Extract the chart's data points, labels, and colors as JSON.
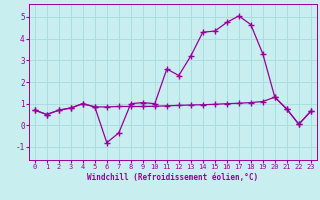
{
  "xlabel": "Windchill (Refroidissement éolien,°C)",
  "background_color": "#c8eef0",
  "grid_color": "#aadddd",
  "line_color": "#990099",
  "xlim": [
    -0.5,
    23.5
  ],
  "ylim": [
    -1.6,
    5.6
  ],
  "yticks": [
    -1,
    0,
    1,
    2,
    3,
    4,
    5
  ],
  "xticks": [
    0,
    1,
    2,
    3,
    4,
    5,
    6,
    7,
    8,
    9,
    10,
    11,
    12,
    13,
    14,
    15,
    16,
    17,
    18,
    19,
    20,
    21,
    22,
    23
  ],
  "series1_x": [
    0,
    1,
    2,
    3,
    4,
    5,
    6,
    7,
    8,
    9,
    10,
    11,
    12,
    13,
    14,
    15,
    16,
    17,
    18,
    19,
    20,
    21,
    22,
    23
  ],
  "series1_y": [
    0.7,
    0.5,
    0.7,
    0.8,
    1.0,
    0.85,
    -0.8,
    -0.35,
    1.0,
    1.05,
    1.0,
    2.6,
    2.3,
    3.2,
    4.3,
    4.35,
    4.75,
    5.05,
    4.65,
    3.3,
    1.3,
    0.75,
    0.05,
    0.65
  ],
  "series2_x": [
    0,
    1,
    2,
    3,
    4,
    5,
    6,
    7,
    8,
    9,
    10,
    11,
    12,
    13,
    14,
    15,
    16,
    17,
    18,
    19,
    20,
    21,
    22,
    23
  ],
  "series2_y": [
    0.7,
    0.5,
    0.7,
    0.8,
    1.0,
    0.85,
    0.85,
    0.87,
    0.87,
    0.87,
    0.88,
    0.9,
    0.92,
    0.94,
    0.95,
    0.97,
    1.0,
    1.02,
    1.05,
    1.1,
    1.3,
    0.75,
    0.05,
    0.65
  ],
  "marker": "+"
}
